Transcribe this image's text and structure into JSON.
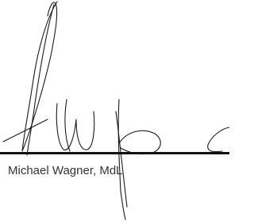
{
  "signature": {
    "name": "Michael Wagner, MdL"
  }
}
